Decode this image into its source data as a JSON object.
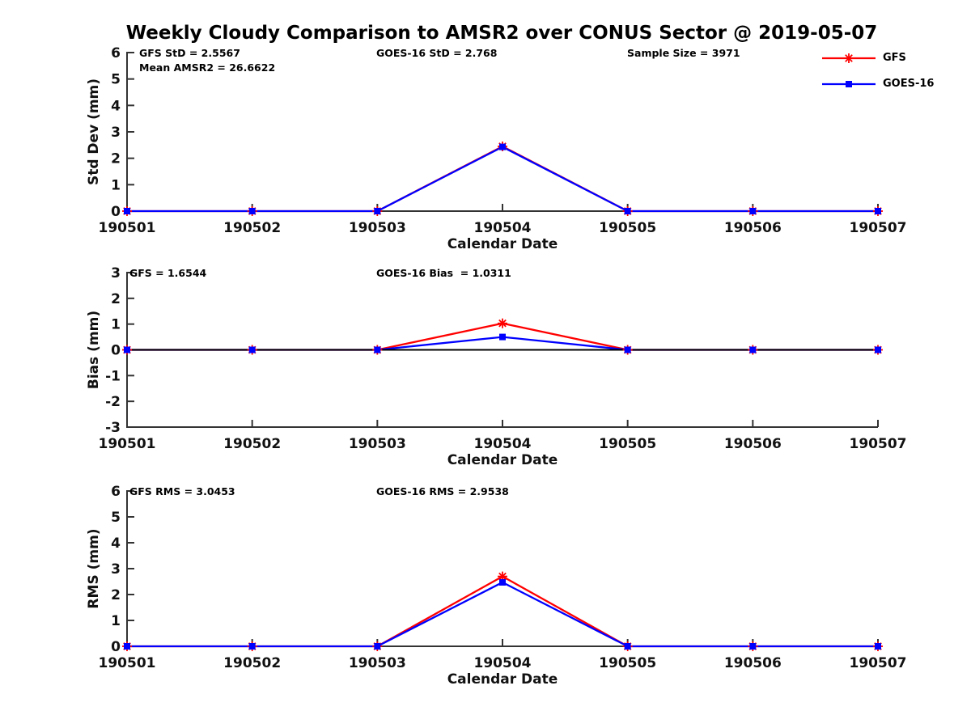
{
  "title": "Weekly Cloudy Comparison to AMSR2 over CONUS Sector @ 2019-05-07",
  "colors": {
    "gfs": "#ff0000",
    "goes16": "#0000ff",
    "axis": "#333333",
    "text": "#111111",
    "annotation": "#000000",
    "zero_line": "#000000",
    "background": "#ffffff"
  },
  "legend": {
    "position": "outside-top-right",
    "items": [
      {
        "label": "GFS",
        "color": "#ff0000",
        "marker": "asterisk"
      },
      {
        "label": "GOES-16",
        "color": "#0000ff",
        "marker": "square"
      }
    ]
  },
  "chart_data": [
    {
      "id": "stddev",
      "type": "line",
      "title": "",
      "xlabel": "Calendar Date",
      "ylabel": "Std Dev (mm)",
      "ylim": [
        0,
        6
      ],
      "yticks": [
        6,
        5,
        4,
        3,
        2,
        1,
        0
      ],
      "grid": false,
      "zero_line": false,
      "categories": [
        "190501",
        "190502",
        "190503",
        "190504",
        "190505",
        "190506",
        "190507"
      ],
      "series": [
        {
          "name": "GFS",
          "color": "#ff0000",
          "marker": "asterisk",
          "values": [
            0,
            0,
            0,
            2.45,
            0,
            0,
            0
          ]
        },
        {
          "name": "GOES-16",
          "color": "#0000ff",
          "marker": "square",
          "values": [
            0,
            0,
            0,
            2.43,
            0,
            0,
            0
          ]
        }
      ],
      "annotations": [
        {
          "text": "GFS StD = 2.5567",
          "col": 0,
          "row": 0
        },
        {
          "text": "Mean AMSR2 = 26.6622",
          "col": 0,
          "row": 1
        },
        {
          "text": "GOES-16 StD = 2.768",
          "col": 1,
          "row": 0
        },
        {
          "text": "Sample Size = 3971",
          "col": 2,
          "row": 0
        }
      ]
    },
    {
      "id": "bias",
      "type": "line",
      "title": "",
      "xlabel": "Calendar Date",
      "ylabel": "Bias (mm)",
      "ylim": [
        -3,
        3
      ],
      "yticks": [
        3,
        2,
        1,
        0,
        -1,
        -2,
        -3
      ],
      "grid": false,
      "zero_line": true,
      "categories": [
        "190501",
        "190502",
        "190503",
        "190504",
        "190505",
        "190506",
        "190507"
      ],
      "series": [
        {
          "name": "GFS",
          "color": "#ff0000",
          "marker": "asterisk",
          "values": [
            0,
            0,
            0,
            1.03,
            0,
            0,
            0
          ]
        },
        {
          "name": "GOES-16",
          "color": "#0000ff",
          "marker": "square",
          "values": [
            0,
            0,
            0,
            0.5,
            0,
            0,
            0
          ]
        }
      ],
      "annotations": [
        {
          "text": "GFS = 1.6544",
          "col": 0,
          "row": 0
        },
        {
          "text": "GOES-16 Bias  = 1.0311",
          "col": 1,
          "row": 0
        }
      ]
    },
    {
      "id": "rms",
      "type": "line",
      "title": "",
      "xlabel": "Calendar Date",
      "ylabel": "RMS (mm)",
      "ylim": [
        0,
        6
      ],
      "yticks": [
        6,
        5,
        4,
        3,
        2,
        1,
        0
      ],
      "grid": false,
      "zero_line": false,
      "categories": [
        "190501",
        "190502",
        "190503",
        "190504",
        "190505",
        "190506",
        "190507"
      ],
      "series": [
        {
          "name": "GFS",
          "color": "#ff0000",
          "marker": "asterisk",
          "values": [
            0,
            0,
            0,
            2.7,
            0,
            0,
            0
          ]
        },
        {
          "name": "GOES-16",
          "color": "#0000ff",
          "marker": "square",
          "values": [
            0,
            0,
            0,
            2.47,
            0,
            0,
            0
          ]
        }
      ],
      "annotations": [
        {
          "text": "GFS RMS = 3.0453",
          "col": 0,
          "row": 0
        },
        {
          "text": "GOES-16 RMS = 2.9538",
          "col": 1,
          "row": 0
        }
      ]
    }
  ]
}
